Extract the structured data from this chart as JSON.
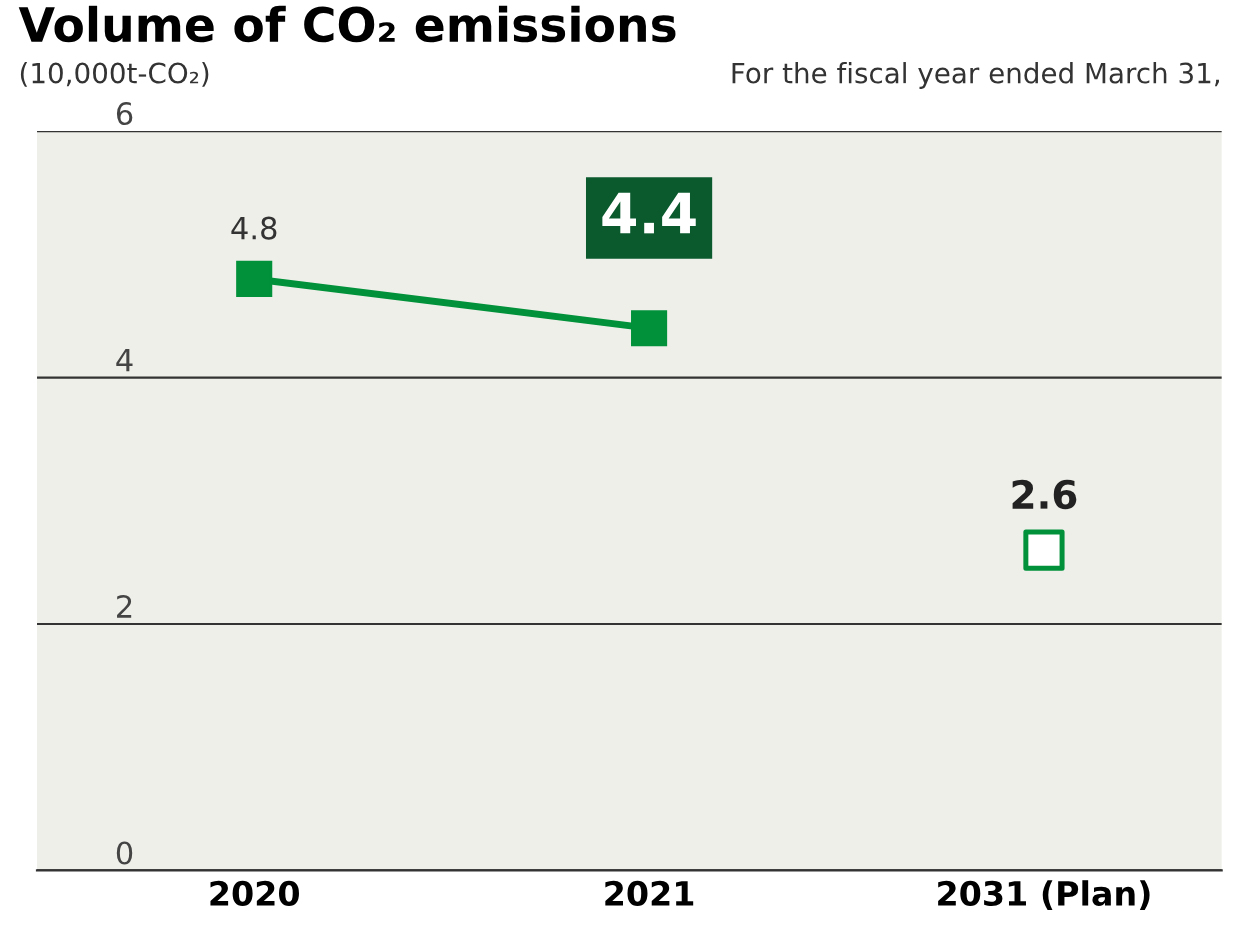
{
  "chart_data": {
    "type": "line",
    "title": "Volume of CO₂ emissions",
    "subtitle": "(10,000t-CO₂)",
    "annotations": [
      "For the fiscal year ended March 31,"
    ],
    "categories": [
      "2020",
      "2021",
      "2031 (Plan)"
    ],
    "series": [
      {
        "color": "#00913a",
        "values": [
          4.8,
          4.4,
          null
        ],
        "value_labels": [
          "4.8",
          "4.4",
          null
        ],
        "marker": "square"
      },
      {
        "type": "scatter",
        "color": "#00913a",
        "values": [
          null,
          null,
          2.6
        ],
        "value_labels": [
          null,
          null,
          "2.6"
        ],
        "marker": "square"
      }
    ],
    "ylim": [
      0,
      6
    ],
    "yticks": [
      0,
      2,
      4,
      6
    ],
    "grid": "y",
    "legend": false
  }
}
